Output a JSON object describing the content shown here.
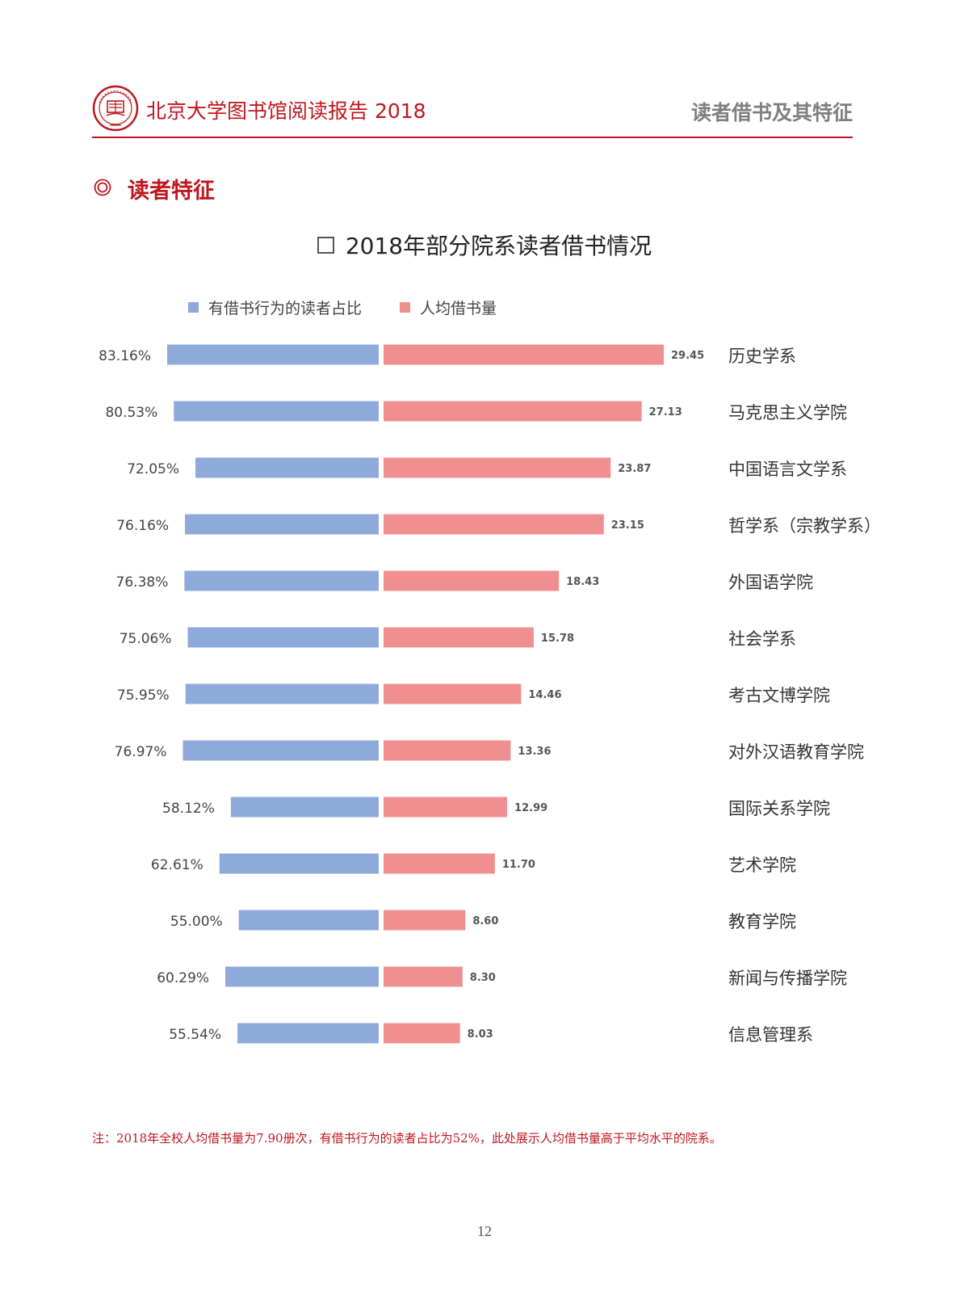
{
  "header": {
    "report_title": "北京大学图书馆阅读报告 2018",
    "section_label": "读者借书及其特征",
    "logo_text": "PEKING UNIVERSITY LIBRARY 1898"
  },
  "subsection": {
    "title": "读者特征"
  },
  "chart_data": {
    "type": "bar",
    "title": "2018年部分院系读者借书情况",
    "legend_position": "top",
    "categories": [
      "历史学系",
      "马克思主义学院",
      "中国语言文学系",
      "哲学系（宗教学系）",
      "外国语学院",
      "社会学系",
      "考古文博学院",
      "对外汉语教育学院",
      "国际关系学院",
      "艺术学院",
      "教育学院",
      "新闻与传播学院",
      "信息管理系"
    ],
    "series": [
      {
        "name": "有借书行为的读者占比",
        "color": "#8eaadb",
        "values": [
          83.16,
          80.53,
          72.05,
          76.16,
          76.38,
          75.06,
          75.95,
          76.97,
          58.12,
          62.61,
          55.0,
          60.29,
          55.54
        ],
        "labels": [
          "83.16%",
          "80.53%",
          "72.05%",
          "76.16%",
          "76.38%",
          "75.06%",
          "75.95%",
          "76.97%",
          "58.12%",
          "62.61%",
          "55.00%",
          "60.29%",
          "55.54%"
        ]
      },
      {
        "name": "人均借书量",
        "color": "#f08f8f",
        "values": [
          29.45,
          27.13,
          23.87,
          23.15,
          18.43,
          15.78,
          14.46,
          13.36,
          12.99,
          11.7,
          8.6,
          8.3,
          8.03
        ],
        "labels": [
          "29.45",
          "27.13",
          "23.87",
          "23.15",
          "18.43",
          "15.78",
          "14.46",
          "13.36",
          "12.99",
          "11.70",
          "8.60",
          "8.30",
          "8.03"
        ]
      }
    ],
    "grid": false
  },
  "footnote": "注：2018年全校人均借书量为7.90册次，有借书行为的读者占比为52%，此处展示人均借书量高于平均水平的院系。",
  "page_number": "12"
}
